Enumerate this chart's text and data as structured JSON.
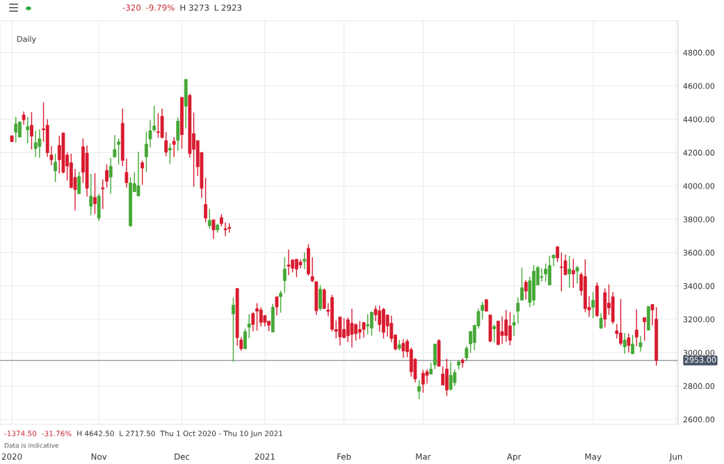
{
  "chart_data": {
    "type": "candlestick",
    "categories": [
      "2020",
      null,
      null,
      null,
      null,
      null,
      null,
      null,
      null,
      null,
      null,
      null,
      null,
      null,
      null,
      null,
      null,
      null,
      null,
      null,
      null,
      null,
      "Nov",
      null,
      null,
      null,
      null,
      null,
      null,
      null,
      null,
      null,
      null,
      null,
      null,
      null,
      null,
      null,
      null,
      null,
      null,
      null,
      null,
      "Dec",
      null,
      null,
      null,
      null,
      null,
      null,
      null,
      null,
      null,
      null,
      null,
      null,
      null,
      null,
      null,
      null,
      null,
      null,
      null,
      null,
      "2021",
      null,
      null,
      null,
      null,
      null,
      null,
      null,
      null,
      null,
      null,
      null,
      null,
      null,
      null,
      null,
      null,
      null,
      null,
      null,
      "Feb",
      null,
      null,
      null,
      null,
      null,
      null,
      null,
      null,
      null,
      null,
      null,
      null,
      null,
      null,
      null,
      null,
      null,
      null,
      null,
      "Mar",
      null,
      null,
      null,
      null,
      null,
      null,
      null,
      null,
      null,
      null,
      null,
      null,
      null,
      null,
      null,
      null,
      null,
      null,
      null,
      null,
      null,
      null,
      "Apr",
      null,
      null,
      null,
      null,
      null,
      null,
      null,
      null,
      null,
      null,
      null,
      null,
      null,
      null,
      null,
      null,
      null,
      null,
      null,
      "May",
      null,
      null,
      null,
      null,
      null,
      null,
      null,
      null,
      null,
      null,
      null,
      null,
      null,
      null,
      null,
      null,
      null,
      null,
      null,
      null,
      "Jun"
    ],
    "ohlc": [
      [
        4301,
        4301,
        4265,
        4265
      ],
      [
        4322,
        4414,
        4260,
        4372
      ],
      [
        4293,
        4385,
        4290,
        4385
      ],
      [
        4426,
        4447,
        4367,
        4397
      ],
      [
        4336,
        4414,
        4257,
        4356
      ],
      [
        4364,
        4443,
        4219,
        4299
      ],
      [
        4224,
        4331,
        4174,
        4260
      ],
      [
        4236,
        4339,
        4169,
        4283
      ],
      [
        4343,
        4501,
        4265,
        4337
      ],
      [
        4364,
        4400,
        4174,
        4199
      ],
      [
        4185,
        4239,
        4124,
        4157
      ],
      [
        4090,
        4193,
        4024,
        4143
      ],
      [
        4243,
        4301,
        4075,
        4157
      ],
      [
        4318,
        4318,
        4075,
        4082
      ],
      [
        4185,
        4201,
        4032,
        4119
      ],
      [
        4139,
        4193,
        3986,
        3990
      ],
      [
        4051,
        4101,
        3853,
        3978
      ],
      [
        3953,
        4085,
        3953,
        4056
      ],
      [
        4235,
        4285,
        4019,
        4082
      ],
      [
        4197,
        4243,
        3936,
        3986
      ],
      [
        3878,
        4072,
        3824,
        3939
      ],
      [
        3931,
        4076,
        3832,
        3893
      ],
      [
        3807,
        3953,
        3790,
        3939
      ],
      [
        3989,
        4039,
        3861,
        3982
      ],
      [
        4093,
        4129,
        3990,
        4028
      ],
      [
        4053,
        4168,
        3953,
        4118
      ],
      [
        4174,
        4306,
        4169,
        4218
      ],
      [
        4249,
        4285,
        4128,
        4264
      ],
      [
        4376,
        4464,
        4119,
        4153
      ],
      [
        4081,
        4164,
        3990,
        4019
      ],
      [
        3761,
        4051,
        3753,
        4018
      ],
      [
        3965,
        4081,
        3965,
        4014
      ],
      [
        3940,
        4206,
        3940,
        4001
      ],
      [
        4139,
        4151,
        4007,
        4107
      ],
      [
        4174,
        4326,
        4082,
        4251
      ],
      [
        4282,
        4393,
        4232,
        4331
      ],
      [
        4336,
        4481,
        4324,
        4360
      ],
      [
        4325,
        4435,
        4290,
        4321
      ],
      [
        4418,
        4464,
        4286,
        4290
      ],
      [
        4272,
        4322,
        4178,
        4203
      ],
      [
        4215,
        4256,
        4132,
        4226
      ],
      [
        4268,
        4293,
        4174,
        4249
      ],
      [
        4274,
        4410,
        4211,
        4389
      ],
      [
        4531,
        4531,
        4224,
        4307
      ],
      [
        4478,
        4639,
        4344,
        4639
      ],
      [
        4543,
        4553,
        4169,
        4194
      ],
      [
        4314,
        4440,
        3994,
        4219
      ],
      [
        4272,
        4272,
        4061,
        4115
      ],
      [
        4201,
        4201,
        3928,
        3986
      ],
      [
        3889,
        4049,
        3781,
        3807
      ],
      [
        3761,
        3860,
        3744,
        3793
      ],
      [
        3797,
        3797,
        3682,
        3736
      ],
      [
        3736,
        3774,
        3719,
        3765
      ],
      [
        3810,
        3831,
        3757,
        3774
      ],
      [
        3743,
        3781,
        3699,
        3736
      ],
      [
        3751,
        3776,
        3719,
        3744
      ],
      [
        3232,
        3331,
        2944,
        3285
      ],
      [
        3385,
        3385,
        3040,
        3090
      ],
      [
        3076,
        3093,
        3011,
        3024
      ],
      [
        3024,
        3143,
        3019,
        3126
      ],
      [
        3153,
        3231,
        3086,
        3172
      ],
      [
        3235,
        3243,
        3128,
        3169
      ],
      [
        3264,
        3297,
        3132,
        3249
      ],
      [
        3256,
        3272,
        3157,
        3182
      ],
      [
        3222,
        3226,
        3157,
        3182
      ],
      [
        3189,
        3189,
        3128,
        3165
      ],
      [
        3124,
        3293,
        3124,
        3272
      ],
      [
        3335,
        3335,
        3224,
        3274
      ],
      [
        3336,
        3372,
        3240,
        3356
      ],
      [
        3432,
        3572,
        3357,
        3501
      ],
      [
        3526,
        3618,
        3465,
        3518
      ],
      [
        3556,
        3560,
        3482,
        3506
      ],
      [
        3560,
        3560,
        3453,
        3501
      ],
      [
        3543,
        3560,
        3506,
        3526
      ],
      [
        3547,
        3601,
        3501,
        3560
      ],
      [
        3626,
        3651,
        3461,
        3472
      ],
      [
        3456,
        3572,
        3422,
        3431
      ],
      [
        3426,
        3426,
        3226,
        3251
      ],
      [
        3264,
        3406,
        3251,
        3381
      ],
      [
        3376,
        3385,
        3264,
        3264
      ],
      [
        3256,
        3297,
        3218,
        3247
      ],
      [
        3331,
        3347,
        3128,
        3140
      ],
      [
        3139,
        3193,
        3086,
        3128
      ],
      [
        3214,
        3214,
        3044,
        3094
      ],
      [
        3139,
        3206,
        3090,
        3090
      ],
      [
        3197,
        3210,
        3063,
        3101
      ],
      [
        3176,
        3264,
        3031,
        3110
      ],
      [
        3168,
        3176,
        3072,
        3114
      ],
      [
        3139,
        3189,
        3081,
        3122
      ],
      [
        3181,
        3181,
        3089,
        3139
      ],
      [
        3160,
        3231,
        3110,
        3168
      ],
      [
        3147,
        3243,
        3101,
        3243
      ],
      [
        3260,
        3281,
        3189,
        3226
      ],
      [
        3251,
        3281,
        3126,
        3168
      ],
      [
        3260,
        3268,
        3085,
        3122
      ],
      [
        3226,
        3226,
        3097,
        3160
      ],
      [
        3176,
        3222,
        3063,
        3085
      ],
      [
        3106,
        3110,
        3014,
        3022
      ],
      [
        3026,
        3076,
        3014,
        3047
      ],
      [
        3056,
        3081,
        2968,
        3010
      ],
      [
        3068,
        3081,
        2972,
        3006
      ],
      [
        3018,
        3031,
        2856,
        2885
      ],
      [
        2960,
        2968,
        2822,
        2843
      ],
      [
        2768,
        2835,
        2721,
        2797
      ],
      [
        2876,
        2897,
        2760,
        2811
      ],
      [
        2885,
        2901,
        2814,
        2864
      ],
      [
        2872,
        2939,
        2868,
        2901
      ],
      [
        2926,
        3051,
        2901,
        3051
      ],
      [
        3072,
        3081,
        2918,
        2918
      ],
      [
        2872,
        2918,
        2806,
        2806
      ],
      [
        2901,
        2964,
        2739,
        2776
      ],
      [
        2780,
        2943,
        2772,
        2864
      ],
      [
        2820,
        2900,
        2800,
        2880
      ],
      [
        2925,
        2955,
        2900,
        2945
      ],
      [
        2955,
        2965,
        2910,
        2940
      ],
      [
        2969,
        3040,
        2949,
        3026
      ],
      [
        3053,
        3131,
        2999,
        3126
      ],
      [
        3061,
        3164,
        3015,
        3164
      ],
      [
        3161,
        3264,
        3144,
        3247
      ],
      [
        3253,
        3306,
        3199,
        3285
      ],
      [
        3318,
        3318,
        3249,
        3249
      ],
      [
        3226,
        3226,
        3061,
        3069
      ],
      [
        3143,
        3168,
        3061,
        3157
      ],
      [
        3189,
        3189,
        3044,
        3049
      ],
      [
        3126,
        3218,
        3053,
        3103
      ],
      [
        3197,
        3256,
        3065,
        3103
      ],
      [
        3160,
        3243,
        3044,
        3074
      ],
      [
        3165,
        3226,
        3099,
        3181
      ],
      [
        3249,
        3331,
        3174,
        3297
      ],
      [
        3315,
        3510,
        3315,
        3389
      ],
      [
        3422,
        3435,
        3319,
        3369
      ],
      [
        3301,
        3456,
        3272,
        3431
      ],
      [
        3315,
        3526,
        3281,
        3489
      ],
      [
        3406,
        3522,
        3406,
        3510
      ],
      [
        3451,
        3506,
        3426,
        3456
      ],
      [
        3472,
        3535,
        3426,
        3501
      ],
      [
        3406,
        3581,
        3406,
        3522
      ],
      [
        3568,
        3589,
        3518,
        3585
      ],
      [
        3635,
        3639,
        3543,
        3568
      ],
      [
        3514,
        3601,
        3368,
        3511
      ],
      [
        3551,
        3589,
        3464,
        3468
      ],
      [
        3472,
        3581,
        3389,
        3501
      ],
      [
        3493,
        3564,
        3389,
        3472
      ],
      [
        3489,
        3522,
        3414,
        3510
      ],
      [
        3468,
        3481,
        3343,
        3372
      ],
      [
        3456,
        3560,
        3243,
        3264
      ],
      [
        3272,
        3339,
        3214,
        3256
      ],
      [
        3272,
        3364,
        3206,
        3314
      ],
      [
        3401,
        3422,
        3214,
        3222
      ],
      [
        3147,
        3239,
        3143,
        3206
      ],
      [
        3360,
        3385,
        3151,
        3201
      ],
      [
        3297,
        3410,
        3226,
        3268
      ],
      [
        3335,
        3364,
        3172,
        3185
      ],
      [
        3131,
        3172,
        3085,
        3114
      ],
      [
        3118,
        3322,
        3043,
        3056
      ],
      [
        3035,
        3118,
        2993,
        3076
      ],
      [
        3089,
        3114,
        3001,
        3043
      ],
      [
        2993,
        3106,
        2993,
        3051
      ],
      [
        3135,
        3260,
        3039,
        3093
      ],
      [
        3035,
        3101,
        3006,
        3060
      ],
      [
        3210,
        3210,
        3072,
        3185
      ],
      [
        3135,
        3281,
        3135,
        3276
      ],
      [
        3289,
        3289,
        3164,
        3256
      ],
      [
        3201,
        3273,
        2923,
        2953
      ],
      null,
      null,
      null,
      null,
      null
    ],
    "colors": [
      "#d81a2e",
      "#45a735",
      "#45a735",
      "#d81a2e",
      "#45a735",
      "#d81a2e",
      "#45a735",
      "#45a735",
      "#d81a2e",
      "#d81a2e",
      "#d81a2e",
      "#45a735",
      "#d81a2e",
      "#d81a2e",
      "#d81a2e",
      "#d81a2e",
      "#d81a2e",
      "#45a735",
      "#d81a2e",
      "#d81a2e",
      "#45a735",
      "#d81a2e",
      "#45a735",
      "#d81a2e",
      "#d81a2e",
      "#45a735",
      "#45a735",
      "#45a735",
      "#d81a2e",
      "#d81a2e",
      "#45a735",
      "#45a735",
      "#45a735",
      "#d81a2e",
      "#45a735",
      "#45a735",
      "#45a735",
      "#d81a2e",
      "#d81a2e",
      "#d81a2e",
      "#45a735",
      "#d81a2e",
      "#45a735",
      "#d81a2e",
      "#45a735",
      "#d81a2e",
      "#d81a2e",
      "#d81a2e",
      "#d81a2e",
      "#d81a2e",
      "#45a735",
      "#d81a2e",
      "#45a735",
      "#d81a2e",
      "#d81a2e",
      "#d81a2e",
      "#45a735",
      "#d81a2e",
      "#d81a2e",
      "#45a735",
      "#45a735",
      "#d81a2e",
      "#d81a2e",
      "#d81a2e",
      "#d81a2e",
      "#d81a2e",
      "#45a735",
      "#d81a2e",
      "#45a735",
      "#45a735",
      "#d81a2e",
      "#d81a2e",
      "#d81a2e",
      "#d81a2e",
      "#45a735",
      "#d81a2e",
      "#d81a2e",
      "#d81a2e",
      "#45a735",
      "#d81a2e",
      "#d81a2e",
      "#d81a2e",
      "#d81a2e",
      "#d81a2e",
      "#d81a2e",
      "#d81a2e",
      "#d81a2e",
      "#d81a2e",
      "#d81a2e",
      "#d81a2e",
      "#45a735",
      "#45a735",
      "#d81a2e",
      "#d81a2e",
      "#d81a2e",
      "#d81a2e",
      "#d81a2e",
      "#d81a2e",
      "#45a735",
      "#d81a2e",
      "#d81a2e",
      "#d81a2e",
      "#d81a2e",
      "#45a735",
      "#d81a2e",
      "#d81a2e",
      "#45a735",
      "#45a735",
      "#d81a2e",
      "#d81a2e",
      "#d81a2e",
      "#45a735",
      "#45a735",
      "#45a735",
      "#d81a2e",
      "#45a735",
      "#45a735",
      "#45a735",
      "#45a735",
      "#45a735",
      "#d81a2e",
      "#d81a2e",
      "#45a735",
      "#d81a2e",
      "#d81a2e",
      "#d81a2e",
      "#d81a2e",
      "#45a735",
      "#45a735",
      "#45a735",
      "#d81a2e",
      "#45a735",
      "#45a735",
      "#45a735",
      "#45a735",
      "#45a735",
      "#45a735",
      "#45a735",
      "#d81a2e",
      "#d81a2e",
      "#d81a2e",
      "#45a735",
      "#d81a2e",
      "#45a735",
      "#d81a2e",
      "#d81a2e",
      "#d81a2e",
      "#45a735",
      "#d81a2e",
      "#45a735",
      "#d81a2e",
      "#d81a2e",
      "#d81a2e",
      "#d81a2e",
      "#d81a2e",
      "#45a735",
      "#d81a2e",
      "#45a735",
      "#d81a2e",
      "#45a735",
      "#d81a2e",
      "#45a735",
      "#d81a2e",
      "#d81a2e",
      null,
      null,
      null,
      null,
      null
    ],
    "ylim": [
      2570,
      4990
    ],
    "yticks": [
      {
        "value": 2600,
        "label": "2600.00"
      },
      {
        "value": 2800,
        "label": "2800.00"
      },
      {
        "value": 3000,
        "label": "3000.00"
      },
      {
        "value": 3200,
        "label": "3200.00"
      },
      {
        "value": 3400,
        "label": "3400.00"
      },
      {
        "value": 3600,
        "label": "3600.00"
      },
      {
        "value": 3800,
        "label": "3800.00"
      },
      {
        "value": 4000,
        "label": "4000.00"
      },
      {
        "value": 4200,
        "label": "4200.00"
      },
      {
        "value": 4400,
        "label": "4400.00"
      },
      {
        "value": 4600,
        "label": "4600.00"
      },
      {
        "value": 4800,
        "label": "4800.00"
      }
    ],
    "grid": true,
    "ref_lines": [
      {
        "axis": "y",
        "value": 2953,
        "label": "2953.00",
        "color": "#9a9ea6"
      }
    ],
    "annotations": [
      "Daily",
      "-320",
      "-9.79%",
      "H 3273",
      "L 2923",
      "-1374.50",
      "-31.76%",
      "H 4642.50",
      "L 2717.50",
      "Thu 1 Oct 2020 - Thu 10 Jun 2021",
      "Data is indicative"
    ]
  }
}
